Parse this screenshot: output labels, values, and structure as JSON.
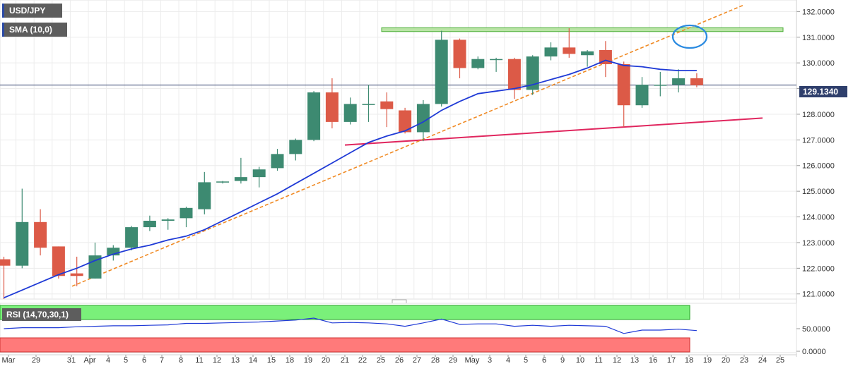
{
  "chart_data": {
    "type": "candlestick",
    "symbol": "USD/JPY",
    "indicator_label": "SMA (10,0)",
    "rsi_label": "RSI (14,70,30,1)",
    "x_labels": [
      "Mar",
      "29",
      "31",
      "Apr",
      "4",
      "5",
      "6",
      "7",
      "8",
      "11",
      "12",
      "13",
      "14",
      "15",
      "18",
      "19",
      "20",
      "21",
      "22",
      "25",
      "26",
      "27",
      "28",
      "29",
      "May",
      "3",
      "4",
      "5",
      "6",
      "9",
      "10",
      "11",
      "12",
      "13",
      "16",
      "17",
      "18",
      "19",
      "20",
      "23",
      "24",
      "25"
    ],
    "y_ticks": [
      "121.0000",
      "122.0000",
      "123.0000",
      "124.0000",
      "125.0000",
      "126.0000",
      "127.0000",
      "128.0000",
      "129.0000",
      "130.0000",
      "131.0000",
      "132.0000"
    ],
    "y_range": [
      120.8,
      132.45
    ],
    "current_price": "129.1340",
    "rsi_ticks": [
      "50.0000",
      "0.0000"
    ],
    "candles": [
      {
        "o": 122.35,
        "h": 122.45,
        "l": 120.8,
        "c": 122.1
      },
      {
        "o": 122.1,
        "h": 125.1,
        "l": 122.0,
        "c": 123.8
      },
      {
        "o": 123.8,
        "h": 124.3,
        "l": 122.5,
        "c": 122.8
      },
      {
        "o": 122.85,
        "h": 122.85,
        "l": 121.6,
        "c": 121.7
      },
      {
        "o": 121.8,
        "h": 122.45,
        "l": 121.3,
        "c": 121.7
      },
      {
        "o": 121.6,
        "h": 123.0,
        "l": 121.6,
        "c": 122.5
      },
      {
        "o": 122.5,
        "h": 122.9,
        "l": 122.3,
        "c": 122.8
      },
      {
        "o": 122.8,
        "h": 123.65,
        "l": 122.7,
        "c": 123.6
      },
      {
        "o": 123.6,
        "h": 124.05,
        "l": 123.45,
        "c": 123.85
      },
      {
        "o": 123.85,
        "h": 123.95,
        "l": 123.5,
        "c": 123.9
      },
      {
        "o": 123.95,
        "h": 124.4,
        "l": 123.6,
        "c": 124.35
      },
      {
        "o": 124.3,
        "h": 125.75,
        "l": 124.1,
        "c": 125.35
      },
      {
        "o": 125.35,
        "h": 125.4,
        "l": 125.3,
        "c": 125.38
      },
      {
        "o": 125.4,
        "h": 126.3,
        "l": 125.3,
        "c": 125.55
      },
      {
        "o": 125.55,
        "h": 125.95,
        "l": 125.15,
        "c": 125.85
      },
      {
        "o": 125.9,
        "h": 126.65,
        "l": 125.8,
        "c": 126.45
      },
      {
        "o": 126.45,
        "h": 127.05,
        "l": 126.2,
        "c": 127.0
      },
      {
        "o": 127.0,
        "h": 128.9,
        "l": 126.95,
        "c": 128.85
      },
      {
        "o": 128.85,
        "h": 129.4,
        "l": 127.45,
        "c": 127.7
      },
      {
        "o": 127.7,
        "h": 128.65,
        "l": 127.6,
        "c": 128.4
      },
      {
        "o": 128.4,
        "h": 129.15,
        "l": 127.7,
        "c": 128.4
      },
      {
        "o": 128.5,
        "h": 128.85,
        "l": 127.5,
        "c": 128.2
      },
      {
        "o": 128.15,
        "h": 128.25,
        "l": 127.25,
        "c": 127.3
      },
      {
        "o": 127.3,
        "h": 128.55,
        "l": 126.95,
        "c": 128.4
      },
      {
        "o": 128.4,
        "h": 131.25,
        "l": 128.3,
        "c": 130.9
      },
      {
        "o": 130.9,
        "h": 130.95,
        "l": 129.4,
        "c": 129.8
      },
      {
        "o": 129.8,
        "h": 130.25,
        "l": 129.75,
        "c": 130.15
      },
      {
        "o": 130.15,
        "h": 130.2,
        "l": 129.65,
        "c": 130.15
      },
      {
        "o": 130.15,
        "h": 130.2,
        "l": 128.6,
        "c": 128.95
      },
      {
        "o": 128.95,
        "h": 130.3,
        "l": 128.75,
        "c": 130.25
      },
      {
        "o": 130.25,
        "h": 130.8,
        "l": 130.1,
        "c": 130.6
      },
      {
        "o": 130.6,
        "h": 131.35,
        "l": 130.2,
        "c": 130.35
      },
      {
        "o": 130.3,
        "h": 130.5,
        "l": 129.85,
        "c": 130.45
      },
      {
        "o": 130.5,
        "h": 130.85,
        "l": 129.45,
        "c": 129.95
      },
      {
        "o": 129.95,
        "h": 130.05,
        "l": 127.5,
        "c": 128.35
      },
      {
        "o": 128.35,
        "h": 129.45,
        "l": 128.25,
        "c": 129.15
      },
      {
        "o": 129.15,
        "h": 129.65,
        "l": 128.7,
        "c": 129.15
      },
      {
        "o": 129.15,
        "h": 129.75,
        "l": 128.85,
        "c": 129.4
      },
      {
        "o": 129.4,
        "h": 129.6,
        "l": 129.05,
        "c": 129.13
      }
    ],
    "sma": [
      120.85,
      121.15,
      121.45,
      121.75,
      122.0,
      122.3,
      122.55,
      122.75,
      122.9,
      123.1,
      123.25,
      123.5,
      123.85,
      124.2,
      124.55,
      124.9,
      125.3,
      125.7,
      126.1,
      126.5,
      126.9,
      127.15,
      127.35,
      127.7,
      128.15,
      128.5,
      128.8,
      128.9,
      129.0,
      129.15,
      129.35,
      129.55,
      129.8,
      130.1,
      129.9,
      129.85,
      129.75,
      129.7,
      129.7
    ],
    "rsi": [
      50,
      52,
      52,
      52,
      54,
      55,
      56,
      56,
      57,
      58,
      61,
      61,
      62,
      63,
      64,
      66,
      68,
      72,
      62,
      63,
      62,
      60,
      55,
      62,
      70,
      59,
      60,
      60,
      55,
      57,
      55,
      57,
      56,
      55,
      40,
      47,
      47,
      49,
      46
    ]
  }
}
